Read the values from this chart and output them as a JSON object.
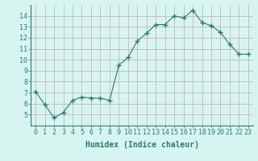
{
  "x": [
    0,
    1,
    2,
    3,
    4,
    5,
    6,
    7,
    8,
    9,
    10,
    11,
    12,
    13,
    14,
    15,
    16,
    17,
    18,
    19,
    20,
    21,
    22,
    23
  ],
  "y": [
    7.1,
    5.9,
    4.7,
    5.2,
    6.3,
    6.6,
    6.5,
    6.5,
    6.3,
    9.5,
    10.2,
    11.7,
    12.4,
    13.2,
    13.2,
    14.0,
    13.8,
    14.5,
    13.4,
    13.1,
    12.5,
    11.4,
    10.5,
    10.5
  ],
  "xlabel": "Humidex (Indice chaleur)",
  "ylim": [
    4,
    15
  ],
  "xlim": [
    -0.5,
    23.5
  ],
  "yticks": [
    5,
    6,
    7,
    8,
    9,
    10,
    11,
    12,
    13,
    14
  ],
  "xticks": [
    0,
    1,
    2,
    3,
    4,
    5,
    6,
    7,
    8,
    9,
    10,
    11,
    12,
    13,
    14,
    15,
    16,
    17,
    18,
    19,
    20,
    21,
    22,
    23
  ],
  "line_color": "#2d7a6e",
  "marker": "+",
  "bg_color": "#d6f5f0",
  "plot_bg_color": "#d6f5f0",
  "grid_color": "#c8a8a8",
  "xlabel_fontsize": 7,
  "tick_fontsize": 6
}
